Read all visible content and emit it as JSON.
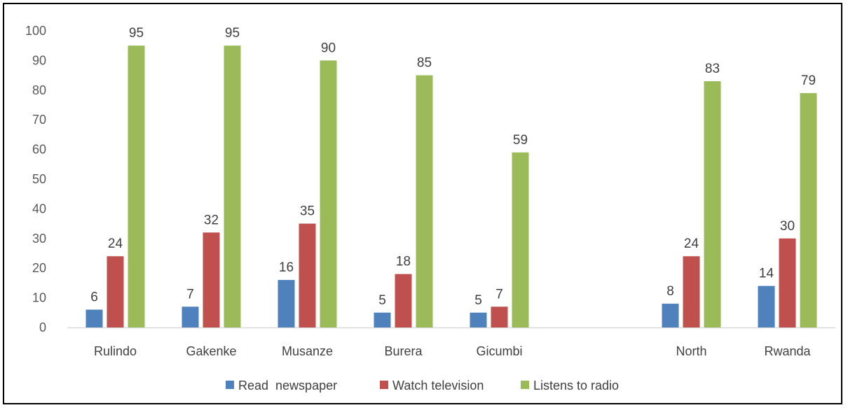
{
  "chart_data": {
    "type": "bar",
    "categories": [
      "Rulindo",
      "Gakenke",
      "Musanze",
      "Burera",
      "Gicumbi",
      "",
      "North",
      "Rwanda"
    ],
    "series": [
      {
        "name": "Read  newspaper",
        "color": "#4f81bd",
        "values": [
          6,
          7,
          16,
          5,
          5,
          null,
          8,
          14
        ],
        "labels": [
          "6",
          "7",
          "16",
          "5",
          "5",
          "",
          "8",
          "14"
        ]
      },
      {
        "name": "Watch television",
        "color": "#c0504d",
        "values": [
          24,
          32,
          35,
          18,
          7,
          null,
          24,
          30
        ],
        "labels": [
          "24",
          "32",
          "35",
          "18",
          "7",
          "",
          "24",
          "30"
        ]
      },
      {
        "name": "Listens to radio",
        "color": "#9bbb59",
        "values": [
          95,
          95,
          90,
          85,
          59,
          null,
          83,
          79
        ],
        "labels": [
          "95",
          "95",
          "90",
          "85",
          "59",
          "",
          "83",
          "79"
        ]
      }
    ],
    "yticks": [
      "0",
      "10",
      "20",
      "30",
      "40",
      "50",
      "60",
      "70",
      "80",
      "90",
      "100"
    ],
    "ylim": [
      0,
      100
    ],
    "grid": false,
    "legend_position": "bottom"
  }
}
